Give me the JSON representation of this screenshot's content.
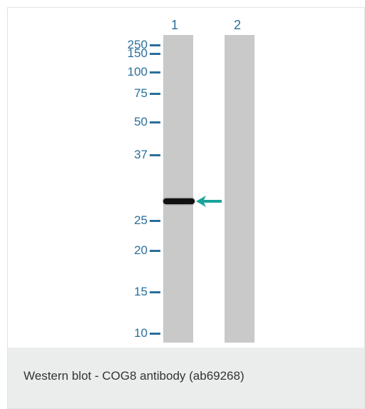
{
  "figure": {
    "lanes": [
      {
        "label": "1"
      },
      {
        "label": "2"
      }
    ],
    "markers": [
      {
        "label": "250"
      },
      {
        "label": "150"
      },
      {
        "label": "100"
      },
      {
        "label": "75"
      },
      {
        "label": "50"
      },
      {
        "label": "37"
      },
      {
        "label": "25"
      },
      {
        "label": "20"
      },
      {
        "label": "15"
      },
      {
        "label": "10"
      }
    ],
    "arrow_color": "#1aa39a",
    "marker_color": "#2a6f9b",
    "lane_color": "#c9c9c9",
    "band_color": "#111111"
  },
  "caption": {
    "text": "Western blot - COG8 antibody (ab69268)"
  }
}
